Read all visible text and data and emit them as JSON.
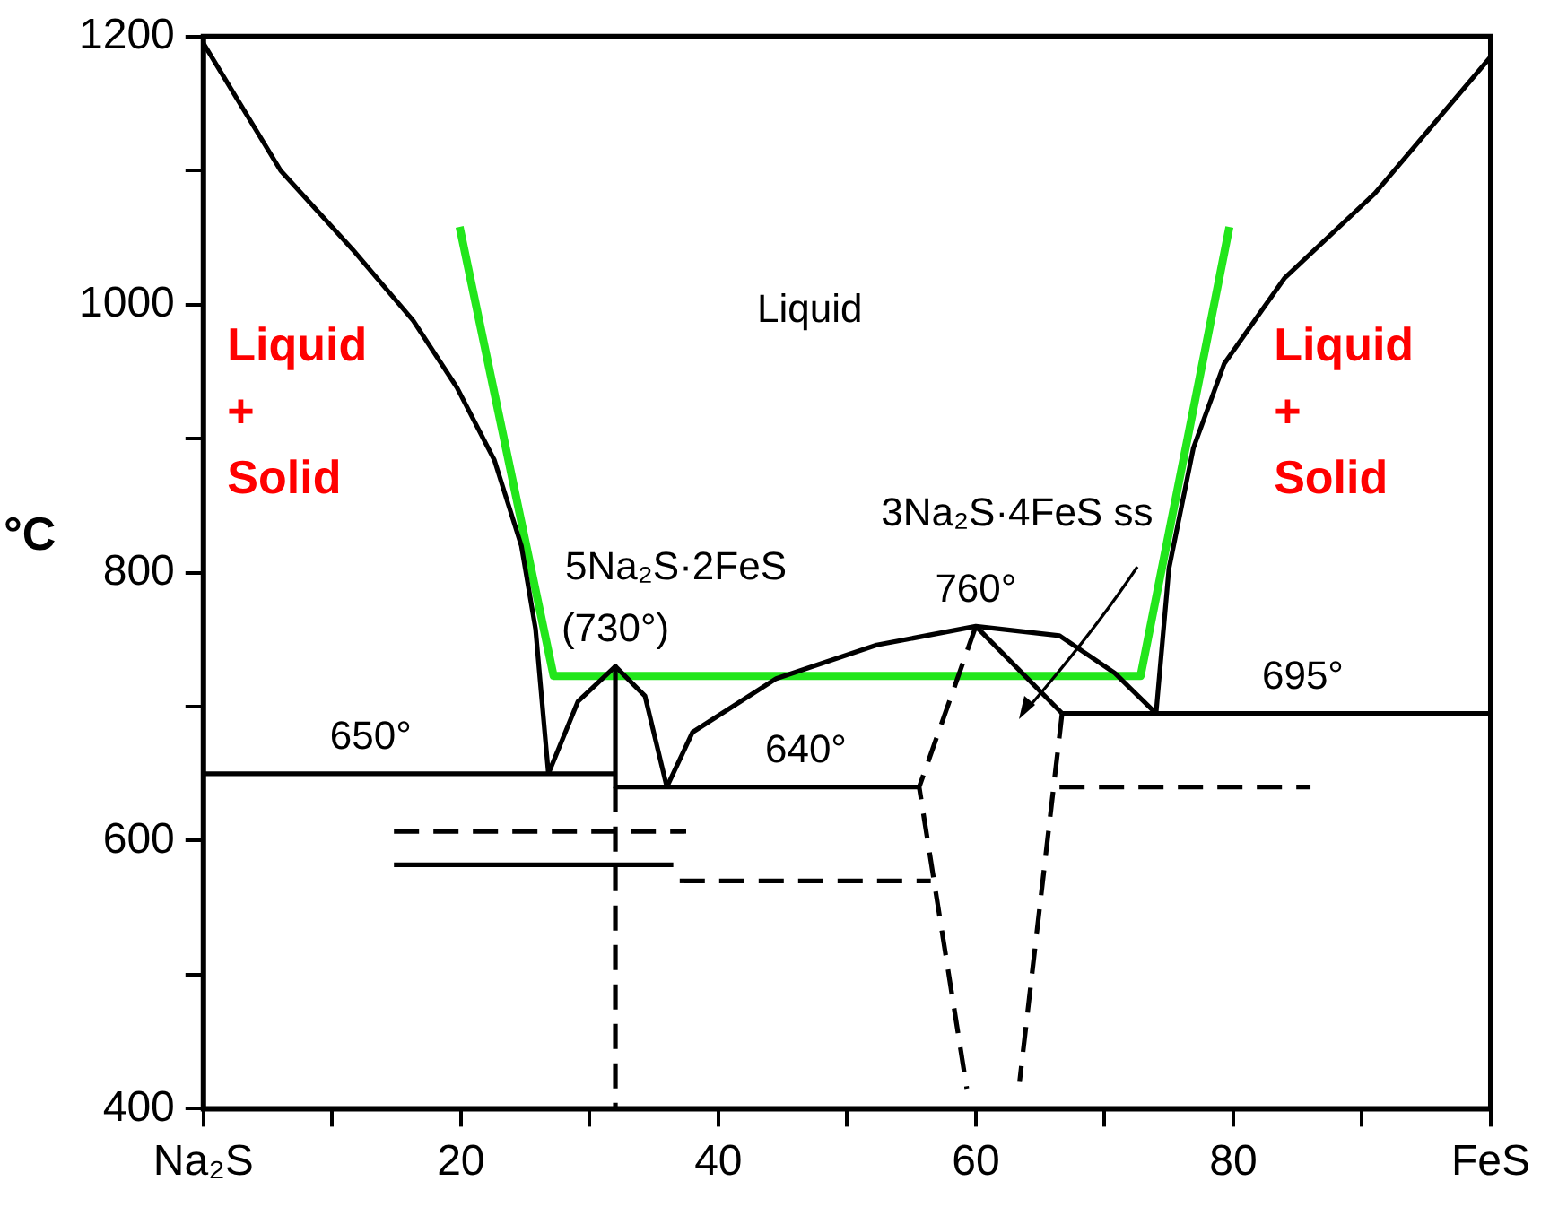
{
  "chart_data": {
    "type": "line",
    "ylabel": "°C",
    "xlim": [
      0,
      100
    ],
    "ylim": [
      400,
      1200
    ],
    "xticks": [
      {
        "value": 0,
        "label": "Na₂S"
      },
      {
        "value": 10,
        "label": null
      },
      20,
      {
        "value": 30,
        "label": null
      },
      40,
      {
        "value": 50,
        "label": null
      },
      60,
      {
        "value": 70,
        "label": null
      },
      80,
      {
        "value": 90,
        "label": null
      },
      {
        "value": 100,
        "label": "FeS"
      }
    ],
    "yticks": [
      400,
      {
        "value": 500,
        "label": null
      },
      600,
      {
        "value": 700,
        "label": null
      },
      800,
      {
        "value": 900,
        "label": null
      },
      1000,
      {
        "value": 1100,
        "label": null
      },
      1200
    ],
    "grid": false,
    "legend": false,
    "marker": "none",
    "series": [
      {
        "type": "line",
        "color": "#000000",
        "line_style": "solid",
        "x": [
          0,
          6,
          11.6,
          16.3,
          19.7,
          22.6,
          24.7,
          25.8,
          26.8
        ],
        "values": [
          1195,
          1100,
          1041,
          988,
          938,
          884,
          820,
          758,
          650
        ]
      },
      {
        "type": "line",
        "color": "#000000",
        "line_style": "solid",
        "x": [
          26.8,
          29.1,
          32,
          34.3,
          36
        ],
        "values": [
          650,
          704,
          730,
          708,
          640
        ]
      },
      {
        "type": "line",
        "color": "#000000",
        "line_style": "solid",
        "x": [
          36,
          38,
          44.5,
          52.3,
          60,
          66.5,
          70.8,
          74
        ],
        "values": [
          640,
          681,
          721,
          746,
          760,
          753,
          725,
          695
        ]
      },
      {
        "type": "line",
        "color": "#000000",
        "line_style": "solid",
        "x": [
          74,
          75,
          76.9,
          79.3,
          84,
          91,
          100
        ],
        "values": [
          695,
          803,
          893,
          956,
          1020,
          1083,
          1185
        ]
      },
      {
        "type": "line",
        "color": "#000000",
        "line_style": "solid",
        "x": [
          0,
          32
        ],
        "values": [
          650,
          650
        ]
      },
      {
        "type": "line",
        "color": "#000000",
        "line_style": "solid",
        "x": [
          32,
          32
        ],
        "values": [
          730,
          640
        ]
      },
      {
        "type": "line",
        "color": "#000000",
        "line_style": "solid",
        "x": [
          32,
          55.6
        ],
        "values": [
          640,
          640
        ]
      },
      {
        "type": "line",
        "color": "#000000",
        "line_style": "solid",
        "x": [
          66.7,
          100
        ],
        "values": [
          695,
          695
        ]
      },
      {
        "type": "line",
        "color": "#000000",
        "line_style": "solid",
        "x": [
          60,
          66.7
        ],
        "values": [
          760,
          695
        ]
      },
      {
        "type": "line",
        "color": "#000000",
        "line_style": "dashed",
        "x": [
          32,
          32
        ],
        "values": [
          640,
          400
        ]
      },
      {
        "type": "line",
        "color": "#000000",
        "line_style": "dashed",
        "x": [
          60,
          55.6,
          59.3
        ],
        "values": [
          760,
          640,
          415
        ]
      },
      {
        "type": "line",
        "color": "#000000",
        "line_style": "dashed",
        "x": [
          66.7,
          63.4
        ],
        "values": [
          695,
          420
        ]
      },
      {
        "type": "line",
        "color": "#000000",
        "line_style": "dashed",
        "x": [
          14.8,
          37.5
        ],
        "values": [
          607,
          607
        ]
      },
      {
        "type": "line",
        "color": "#000000",
        "line_style": "solid",
        "x": [
          14.8,
          36.5
        ],
        "values": [
          582,
          582
        ]
      },
      {
        "type": "line",
        "color": "#000000",
        "line_style": "dashed",
        "x": [
          37,
          56.5
        ],
        "values": [
          570,
          570
        ]
      },
      {
        "type": "line",
        "color": "#000000",
        "line_style": "dashed",
        "x": [
          66.5,
          86
        ],
        "values": [
          640,
          640
        ]
      },
      {
        "color": "#22e61b",
        "line_style": "solid",
        "x": [
          19.9,
          27.2,
          72.8,
          79.7
        ],
        "values": [
          1058,
          723,
          723,
          1058
        ]
      }
    ],
    "annotations": [
      "Liquid",
      "5Na₂S·2FeS",
      {
        "text": "(730°)",
        "x": 32,
        "y": 730
      },
      {
        "text": "650°",
        "x": 13,
        "y": 650
      },
      {
        "text": "640°",
        "x": 46.8,
        "y": 640
      },
      {
        "text": "760°",
        "x": 60,
        "y": 760
      },
      "3Na₂S·4FeS ss",
      {
        "text": "695°",
        "x": 85.4,
        "y": 695
      },
      "Liquid\n+\nSolid",
      "Liquid\n+\nSolid"
    ]
  }
}
